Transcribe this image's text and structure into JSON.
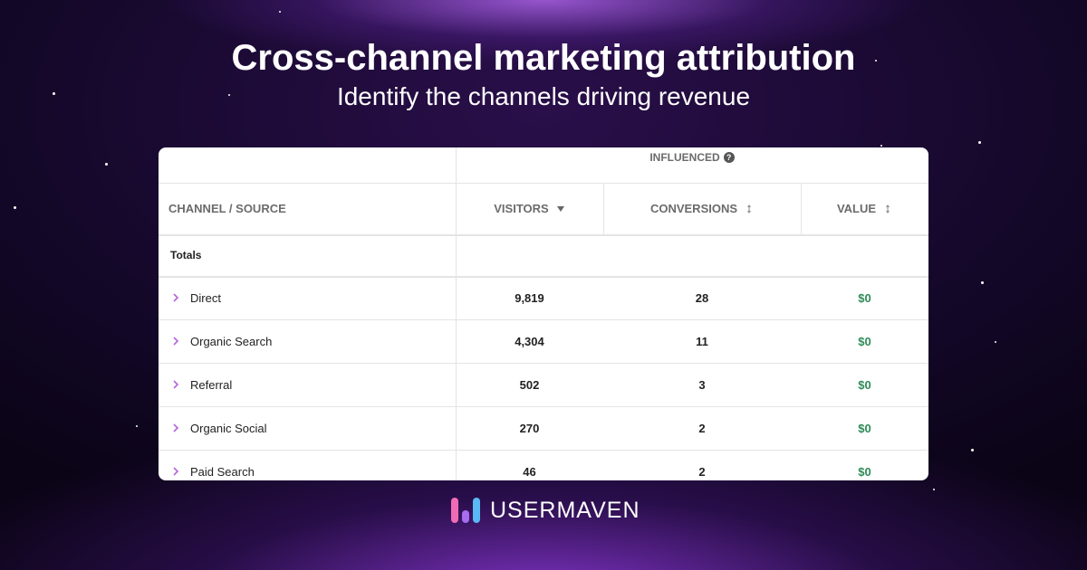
{
  "header": {
    "title": "Cross-channel marketing attribution",
    "subtitle": "Identify the channels driving revenue"
  },
  "table": {
    "group_header": "INFLUENCED",
    "help_icon": "?",
    "columns": [
      "CHANNEL / SOURCE",
      "VISITORS",
      "CONVERSIONS",
      "VALUE"
    ],
    "totals_label": "Totals",
    "rows": [
      [
        "Direct",
        "9,819",
        "28",
        "$0"
      ],
      [
        "Organic Search",
        "4,304",
        "11",
        "$0"
      ],
      [
        "Referral",
        "502",
        "3",
        "$0"
      ],
      [
        "Organic Social",
        "270",
        "2",
        "$0"
      ],
      [
        "Paid Search",
        "46",
        "2",
        "$0"
      ]
    ]
  },
  "brand": {
    "name": "USERMAVEN"
  }
}
